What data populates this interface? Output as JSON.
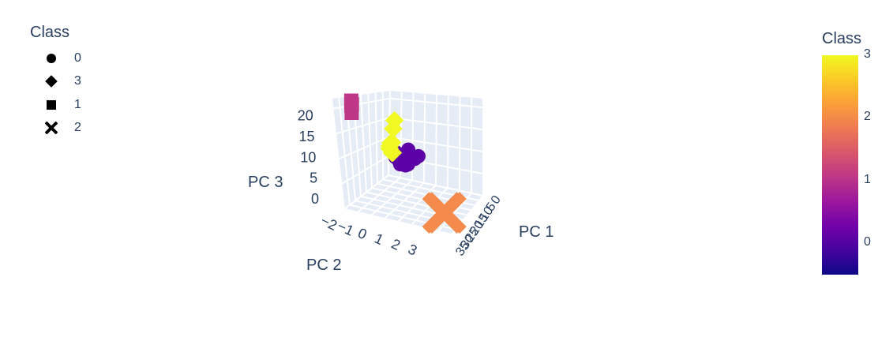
{
  "chart_data": {
    "type": "scatter",
    "dimensions": 3,
    "legend": {
      "title": "Class",
      "placement": "top-left",
      "items": [
        {
          "label": "0",
          "symbol": "circle"
        },
        {
          "label": "3",
          "symbol": "diamond"
        },
        {
          "label": "1",
          "symbol": "square"
        },
        {
          "label": "2",
          "symbol": "x"
        }
      ]
    },
    "colorbar": {
      "title": "Class",
      "range": [
        -0.5,
        3
      ],
      "ticks": [
        "3",
        "2",
        "1",
        "0"
      ],
      "colorscale": [
        "#0d0887",
        "#46039f",
        "#7201a8",
        "#9c179e",
        "#bd3786",
        "#d8576b",
        "#ed7953",
        "#fb9f3a",
        "#fdca26",
        "#f0f921"
      ]
    },
    "axes": {
      "x": {
        "title": "PC 1",
        "ticks": [
          "0",
          "5",
          "10",
          "15",
          "20",
          "25",
          "30",
          "35"
        ]
      },
      "y": {
        "title": "PC 2",
        "ticks": [
          "−2",
          "−1",
          "0",
          "1",
          "2",
          "3"
        ]
      },
      "z": {
        "title": "PC 3",
        "ticks": [
          "0",
          "5",
          "10",
          "15",
          "20"
        ],
        "range": [
          0,
          22
        ]
      }
    },
    "grid": true,
    "series": [
      {
        "name": "0",
        "class": 0,
        "symbol": "circle",
        "color": "#5c01a6",
        "points": [
          [
            10,
            0.5,
            8
          ],
          [
            12,
            0.6,
            7
          ],
          [
            14,
            0.4,
            9
          ],
          [
            16,
            0.2,
            8
          ],
          [
            11,
            0.8,
            9.5
          ],
          [
            13,
            0.3,
            6.5
          ],
          [
            15,
            0.7,
            7.5
          ],
          [
            17,
            0.1,
            8.5
          ],
          [
            12.5,
            0.9,
            8
          ],
          [
            14.5,
            0.5,
            10
          ]
        ]
      },
      {
        "name": "3",
        "class": 3,
        "symbol": "diamond",
        "color": "#f0f921",
        "points": [
          [
            2,
            -1.5,
            6
          ],
          [
            3,
            -1.2,
            7
          ],
          [
            4,
            -1.0,
            8
          ],
          [
            5,
            -0.8,
            6.5
          ],
          [
            3.5,
            -1.4,
            5.5
          ],
          [
            6,
            -0.5,
            9
          ],
          [
            7,
            -0.3,
            12
          ],
          [
            8,
            -0.1,
            14
          ]
        ]
      },
      {
        "name": "1",
        "class": 1,
        "symbol": "square",
        "color": "#bd3786",
        "points": [
          [
            1,
            2.5,
            18
          ],
          [
            1.5,
            2.7,
            20
          ],
          [
            2,
            2.9,
            21
          ],
          [
            1.2,
            2.6,
            19.5
          ],
          [
            2.5,
            3,
            20.5
          ]
        ]
      },
      {
        "name": "2",
        "class": 2,
        "symbol": "x",
        "color": "#f48b4c",
        "points": [
          [
            30,
            2,
            2
          ],
          [
            32,
            2.5,
            3
          ]
        ]
      }
    ]
  }
}
